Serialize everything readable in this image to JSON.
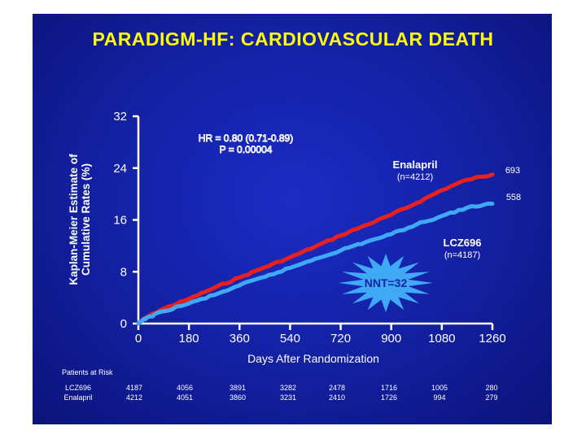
{
  "title": "PARADIGM-HF: CARDIOVASCULAR DEATH",
  "colors": {
    "background": "#1422a8",
    "title": "#ffff00",
    "enalapril": "#e8201e",
    "lcz696": "#3fa9f5",
    "axis": "#ffffff"
  },
  "hr_text": {
    "line1": "HR = 0.80 (0.71-0.89)",
    "line2": "P = 0.00004"
  },
  "nnt_text": "NNT=32",
  "series_labels": {
    "enalapril": {
      "name": "Enalapril",
      "n": "(n=4212)",
      "end": "693"
    },
    "lcz696": {
      "name": "LCZ696",
      "n": "(n=4187)",
      "end": "558"
    }
  },
  "risk_table": {
    "title": "Patients at Risk",
    "rows": [
      {
        "label": "LCZ696",
        "values": [
          "4187",
          "4056",
          "3891",
          "3282",
          "2478",
          "1716",
          "1005",
          "280"
        ]
      },
      {
        "label": "Enalapril",
        "values": [
          "4212",
          "4051",
          "3860",
          "3231",
          "2410",
          "1726",
          "994",
          "279"
        ]
      }
    ]
  },
  "chart_data": {
    "type": "line",
    "xlabel": "Days After Randomization",
    "ylabel": "Kaplan-Meier Estimate of Cumulative Rates (%)",
    "xticks": [
      0,
      180,
      360,
      540,
      720,
      900,
      1080,
      1260
    ],
    "yticks": [
      0,
      8,
      16,
      24,
      32
    ],
    "xlim": [
      0,
      1260
    ],
    "ylim": [
      0,
      32
    ],
    "grid": false,
    "series": [
      {
        "name": "Enalapril",
        "color": "#e8201e",
        "x": [
          0,
          30,
          90,
          180,
          270,
          360,
          450,
          540,
          630,
          720,
          810,
          900,
          990,
          1080,
          1170,
          1260
        ],
        "y": [
          0,
          1.0,
          2.3,
          3.8,
          5.5,
          7.1,
          8.7,
          10.2,
          11.9,
          13.6,
          15.2,
          16.8,
          18.6,
          20.6,
          22.2,
          23.0
        ]
      },
      {
        "name": "LCZ696",
        "color": "#3fa9f5",
        "x": [
          0,
          30,
          90,
          180,
          270,
          360,
          450,
          540,
          630,
          720,
          810,
          900,
          990,
          1080,
          1170,
          1260
        ],
        "y": [
          0,
          0.9,
          1.9,
          3.1,
          4.4,
          5.9,
          7.2,
          8.6,
          10.0,
          11.3,
          12.6,
          13.8,
          15.3,
          16.6,
          17.9,
          18.5
        ]
      }
    ]
  }
}
